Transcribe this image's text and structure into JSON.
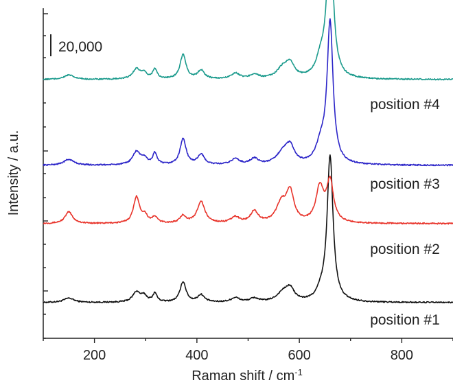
{
  "chart_data": {
    "type": "line",
    "xlabel": "Raman shift / cm",
    "xlabel_sup": "-1",
    "ylabel": "Intensity / a.u.",
    "xlim": [
      100,
      900
    ],
    "x_ticks": [
      200,
      400,
      600,
      800
    ],
    "x_tick_labels": [
      "200",
      "400",
      "600",
      "800"
    ],
    "scale_bar_label": "20,000",
    "y_axis_numbers": false,
    "series": [
      {
        "name": "position #1",
        "color": "#111111",
        "peaks": [
          {
            "x": 150,
            "h": 0.06,
            "w": 12
          },
          {
            "x": 282,
            "h": 0.14,
            "w": 9
          },
          {
            "x": 297,
            "h": 0.08,
            "w": 7
          },
          {
            "x": 318,
            "h": 0.12,
            "w": 5
          },
          {
            "x": 373,
            "h": 0.28,
            "w": 7
          },
          {
            "x": 408,
            "h": 0.1,
            "w": 8
          },
          {
            "x": 475,
            "h": 0.06,
            "w": 10
          },
          {
            "x": 512,
            "h": 0.05,
            "w": 10
          },
          {
            "x": 568,
            "h": 0.12,
            "w": 14
          },
          {
            "x": 582,
            "h": 0.16,
            "w": 10
          },
          {
            "x": 642,
            "h": 0.1,
            "w": 10
          },
          {
            "x": 660,
            "h": 2.0,
            "w": 7
          }
        ]
      },
      {
        "name": "position #2",
        "color": "#e8332a",
        "peaks": [
          {
            "x": 150,
            "h": 0.16,
            "w": 9
          },
          {
            "x": 282,
            "h": 0.36,
            "w": 7
          },
          {
            "x": 298,
            "h": 0.1,
            "w": 7
          },
          {
            "x": 318,
            "h": 0.08,
            "w": 6
          },
          {
            "x": 373,
            "h": 0.1,
            "w": 7
          },
          {
            "x": 408,
            "h": 0.3,
            "w": 9
          },
          {
            "x": 475,
            "h": 0.08,
            "w": 10
          },
          {
            "x": 512,
            "h": 0.16,
            "w": 9
          },
          {
            "x": 565,
            "h": 0.26,
            "w": 12
          },
          {
            "x": 582,
            "h": 0.4,
            "w": 9
          },
          {
            "x": 640,
            "h": 0.48,
            "w": 9
          },
          {
            "x": 660,
            "h": 0.56,
            "w": 8
          }
        ]
      },
      {
        "name": "position #3",
        "color": "#2b24c8",
        "peaks": [
          {
            "x": 150,
            "h": 0.08,
            "w": 12
          },
          {
            "x": 282,
            "h": 0.18,
            "w": 9
          },
          {
            "x": 297,
            "h": 0.08,
            "w": 7
          },
          {
            "x": 318,
            "h": 0.16,
            "w": 5
          },
          {
            "x": 373,
            "h": 0.36,
            "w": 7
          },
          {
            "x": 408,
            "h": 0.14,
            "w": 8
          },
          {
            "x": 475,
            "h": 0.08,
            "w": 10
          },
          {
            "x": 512,
            "h": 0.08,
            "w": 10
          },
          {
            "x": 568,
            "h": 0.16,
            "w": 14
          },
          {
            "x": 582,
            "h": 0.22,
            "w": 10
          },
          {
            "x": 642,
            "h": 0.24,
            "w": 11
          },
          {
            "x": 660,
            "h": 1.94,
            "w": 7
          }
        ]
      },
      {
        "name": "position #4",
        "color": "#1a9a8c",
        "peaks": [
          {
            "x": 150,
            "h": 0.06,
            "w": 12
          },
          {
            "x": 282,
            "h": 0.14,
            "w": 9
          },
          {
            "x": 297,
            "h": 0.07,
            "w": 7
          },
          {
            "x": 318,
            "h": 0.14,
            "w": 5
          },
          {
            "x": 373,
            "h": 0.34,
            "w": 7
          },
          {
            "x": 408,
            "h": 0.12,
            "w": 8
          },
          {
            "x": 475,
            "h": 0.08,
            "w": 10
          },
          {
            "x": 512,
            "h": 0.06,
            "w": 10
          },
          {
            "x": 568,
            "h": 0.14,
            "w": 14
          },
          {
            "x": 582,
            "h": 0.18,
            "w": 10
          },
          {
            "x": 642,
            "h": 0.24,
            "w": 11
          },
          {
            "x": 660,
            "h": 2.1,
            "w": 7
          }
        ]
      }
    ]
  }
}
